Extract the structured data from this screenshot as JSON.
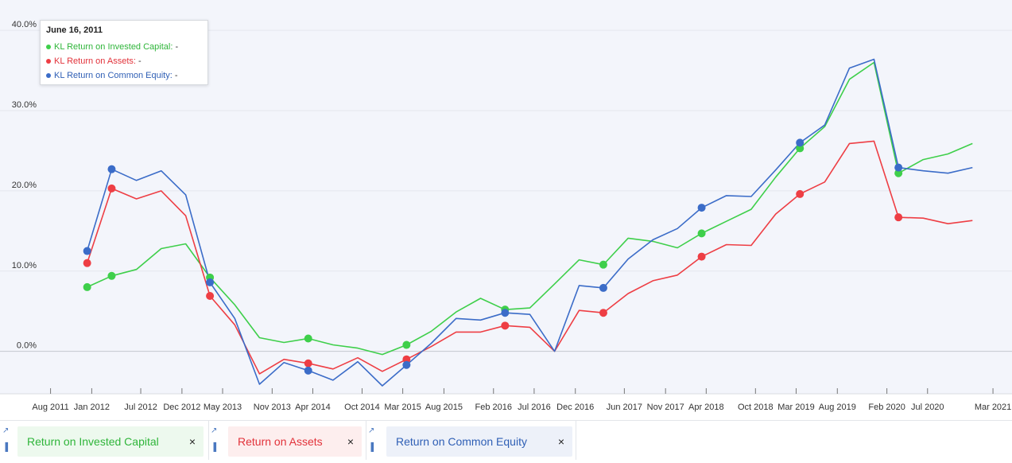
{
  "tooltip": {
    "date": "June 16, 2011",
    "rows": [
      {
        "label": "KL Return on Invested Capital:",
        "value": "-",
        "color": "#3ecf4a"
      },
      {
        "label": "KL Return on Assets:",
        "value": "-",
        "color": "#ee3e44"
      },
      {
        "label": "KL Return on Common Equity:",
        "value": "-",
        "color": "#3b6cc8"
      }
    ]
  },
  "chips": [
    {
      "label": "Return on Invested Capital",
      "close": "×",
      "color": "#3ecf4a",
      "text_color": "#2fb53a",
      "bg": "#edf9ee"
    },
    {
      "label": "Return on Assets",
      "close": "×",
      "color": "#ee3e44",
      "text_color": "#e2323a",
      "bg": "#fdeeee"
    },
    {
      "label": "Return on Common Equity",
      "close": "×",
      "color": "#3b6cc8",
      "text_color": "#2f5fb5",
      "bg": "#edf1f9"
    }
  ],
  "chart_data": {
    "type": "line",
    "ylim": [
      -4.5,
      42
    ],
    "yticks": [
      0,
      10,
      20,
      30,
      40
    ],
    "ytick_labels": [
      "0.0%",
      "10.0%",
      "20.0%",
      "30.0%",
      "40.0%"
    ],
    "xrange": [
      "2011-06-16",
      "2021-04-20"
    ],
    "xticks": [
      "2011-08-01",
      "2012-01-01",
      "2012-07-01",
      "2012-12-01",
      "2013-05-01",
      "2013-11-01",
      "2014-04-01",
      "2014-10-01",
      "2015-03-01",
      "2015-08-01",
      "2016-02-01",
      "2016-07-01",
      "2016-12-01",
      "2017-06-01",
      "2017-11-01",
      "2018-04-01",
      "2018-10-01",
      "2019-03-01",
      "2019-08-01",
      "2020-02-01",
      "2020-07-01",
      "2021-03-01"
    ],
    "xtick_labels": [
      "Aug 2011",
      "Jan 2012",
      "Jul 2012",
      "Dec 2012",
      "May 2013",
      "Nov 2013",
      "Apr 2014",
      "Oct 2014",
      "Mar 2015",
      "Aug 2015",
      "Feb 2016",
      "Jul 2016",
      "Dec 2016",
      "Jun 2017",
      "Nov 2017",
      "Apr 2018",
      "Oct 2018",
      "Mar 2019",
      "Aug 2019",
      "Feb 2020",
      "Jul 2020",
      "Mar 2021"
    ],
    "grid": true,
    "x": [
      "2011-12-15",
      "2012-03-15",
      "2012-06-15",
      "2012-09-15",
      "2012-12-15",
      "2013-03-15",
      "2013-06-15",
      "2013-09-15",
      "2013-12-15",
      "2014-03-15",
      "2014-06-15",
      "2014-09-15",
      "2014-12-15",
      "2015-03-15",
      "2015-06-15",
      "2015-09-15",
      "2015-12-15",
      "2016-03-15",
      "2016-06-15",
      "2016-09-15",
      "2016-12-15",
      "2017-03-15",
      "2017-06-15",
      "2017-09-15",
      "2017-12-15",
      "2018-03-15",
      "2018-06-15",
      "2018-09-15",
      "2018-12-15",
      "2019-03-15",
      "2019-06-15",
      "2019-09-15",
      "2019-12-15",
      "2020-03-15",
      "2020-06-15",
      "2020-09-15",
      "2020-12-15",
      "2021-03-15"
    ],
    "series": [
      {
        "name": "KL Return on Invested Capital",
        "color": "#3ecf4a",
        "values": [
          8.0,
          9.4,
          10.2,
          12.8,
          13.4,
          9.2,
          5.8,
          1.7,
          1.1,
          1.6,
          0.8,
          0.4,
          -0.4,
          0.8,
          2.5,
          4.9,
          6.6,
          5.2,
          5.4,
          8.4,
          11.4,
          10.8,
          14.1,
          13.7,
          12.9,
          14.7,
          16.2,
          17.7,
          21.7,
          25.3,
          28.0,
          33.9,
          36.0,
          22.2,
          23.9,
          24.6,
          25.9,
          null
        ],
        "markers": [
          0,
          1,
          5,
          9,
          13,
          17,
          21,
          25,
          29,
          33
        ]
      },
      {
        "name": "KL Return on Assets",
        "color": "#ee3e44",
        "values": [
          11.0,
          20.3,
          19.0,
          20.0,
          16.9,
          6.9,
          3.3,
          -2.8,
          -1.0,
          -1.5,
          -2.2,
          -0.8,
          -2.5,
          -1.0,
          0.6,
          2.4,
          2.4,
          3.2,
          3.0,
          0.0,
          5.1,
          4.8,
          7.2,
          8.8,
          9.5,
          11.8,
          13.3,
          13.2,
          17.1,
          19.6,
          21.1,
          25.9,
          26.2,
          16.7,
          16.6,
          15.9,
          16.3,
          null
        ],
        "markers": [
          0,
          1,
          5,
          9,
          13,
          17,
          21,
          25,
          29,
          33
        ]
      },
      {
        "name": "KL Return on Common Equity",
        "color": "#3b6cc8",
        "values": [
          12.5,
          22.7,
          21.3,
          22.5,
          19.5,
          8.6,
          4.1,
          -4.1,
          -1.4,
          -2.4,
          -3.6,
          -1.3,
          -4.3,
          -1.7,
          1.0,
          4.1,
          3.9,
          4.8,
          4.6,
          0.0,
          8.2,
          7.9,
          11.5,
          13.9,
          15.3,
          17.9,
          19.4,
          19.3,
          22.6,
          26.0,
          28.2,
          35.3,
          36.4,
          22.9,
          22.5,
          22.2,
          22.9,
          null
        ],
        "markers": [
          0,
          1,
          5,
          9,
          13,
          17,
          21,
          25,
          29,
          33
        ]
      }
    ]
  }
}
